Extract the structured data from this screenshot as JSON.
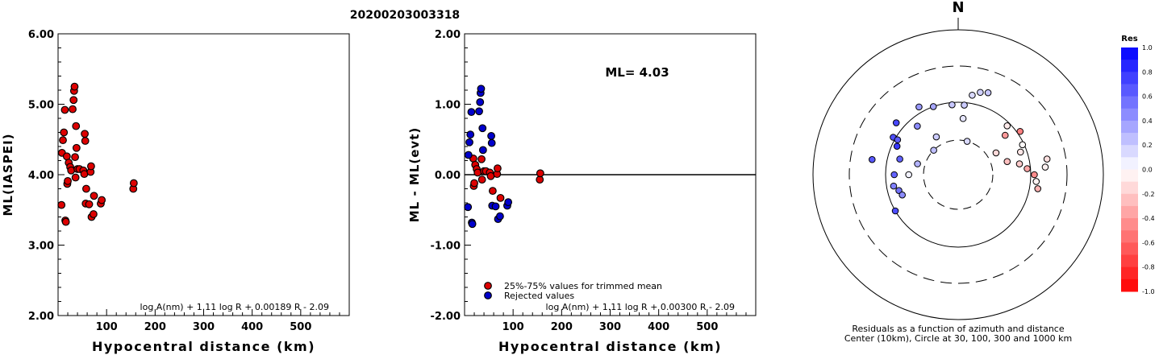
{
  "title": "20200203003318",
  "chart_data": [
    {
      "type": "scatter",
      "ylabel": "ML(IASPEI)",
      "xlabel": "Hypocentral distance (km)",
      "xlim": [
        0,
        600
      ],
      "ylim": [
        2.0,
        6.0
      ],
      "xticks": [
        "100",
        "200",
        "300",
        "400",
        "500"
      ],
      "yticks": [
        "2.00",
        "3.00",
        "4.00",
        "5.00",
        "6.00"
      ],
      "formula": "log A(nm) + 1.11 log R + 0.00189 R - 2.09",
      "series": [
        {
          "color": "#dd0000",
          "points": [
            [
              7,
              3.57
            ],
            [
              8,
              4.31
            ],
            [
              10,
              4.49
            ],
            [
              12,
              4.6
            ],
            [
              14,
              4.92
            ],
            [
              15,
              3.35
            ],
            [
              16,
              3.33
            ],
            [
              18,
              4.26
            ],
            [
              19,
              3.87
            ],
            [
              20,
              3.91
            ],
            [
              22,
              4.17
            ],
            [
              25,
              4.11
            ],
            [
              27,
              4.06
            ],
            [
              30,
              4.93
            ],
            [
              32,
              5.06
            ],
            [
              33,
              5.19
            ],
            [
              34,
              5.25
            ],
            [
              35,
              4.25
            ],
            [
              36,
              3.96
            ],
            [
              37,
              4.69
            ],
            [
              38,
              4.38
            ],
            [
              40,
              4.08
            ],
            [
              44,
              4.08
            ],
            [
              52,
              4.06
            ],
            [
              54,
              4.01
            ],
            [
              55,
              4.58
            ],
            [
              56,
              4.48
            ],
            [
              57,
              3.59
            ],
            [
              58,
              3.8
            ],
            [
              64,
              3.58
            ],
            [
              67,
              4.04
            ],
            [
              68,
              4.12
            ],
            [
              69,
              3.4
            ],
            [
              73,
              3.44
            ],
            [
              74,
              3.7
            ],
            [
              88,
              3.59
            ],
            [
              90,
              3.64
            ],
            [
              155,
              3.8
            ],
            [
              156,
              3.88
            ]
          ]
        }
      ]
    },
    {
      "type": "scatter",
      "ylabel": "ML - ML(evt)",
      "xlabel": "Hypocentral distance (km)",
      "xlim": [
        0,
        600
      ],
      "ylim": [
        -2.0,
        2.0
      ],
      "xticks": [
        "100",
        "200",
        "300",
        "400",
        "500"
      ],
      "yticks": [
        "-2.00",
        "-1.00",
        "0.00",
        "1.00",
        "2.00"
      ],
      "annotation": "ML= 4.03",
      "formula": "log A(nm) + 1.11 log R + 0.00300 R - 2.09",
      "legend": [
        "25%-75% values for trimmed mean",
        "Rejected values"
      ],
      "series": [
        {
          "name": "25%-75% values for trimmed mean",
          "color": "#dd0000",
          "points": [
            [
              18,
              0.23
            ],
            [
              19,
              -0.16
            ],
            [
              20,
              -0.12
            ],
            [
              22,
              0.14
            ],
            [
              25,
              0.08
            ],
            [
              27,
              0.03
            ],
            [
              35,
              0.22
            ],
            [
              36,
              -0.07
            ],
            [
              40,
              0.05
            ],
            [
              44,
              0.05
            ],
            [
              52,
              0.03
            ],
            [
              54,
              -0.02
            ],
            [
              58,
              -0.23
            ],
            [
              67,
              0.01
            ],
            [
              68,
              0.09
            ],
            [
              74,
              -0.33
            ],
            [
              155,
              -0.07
            ],
            [
              156,
              0.02
            ]
          ]
        },
        {
          "name": "Rejected values",
          "color": "#0000cc",
          "points": [
            [
              7,
              -0.46
            ],
            [
              8,
              0.28
            ],
            [
              10,
              0.46
            ],
            [
              12,
              0.57
            ],
            [
              14,
              0.89
            ],
            [
              15,
              -0.68
            ],
            [
              16,
              -0.7
            ],
            [
              30,
              0.9
            ],
            [
              32,
              1.03
            ],
            [
              33,
              1.16
            ],
            [
              34,
              1.22
            ],
            [
              37,
              0.66
            ],
            [
              38,
              0.35
            ],
            [
              55,
              0.55
            ],
            [
              56,
              0.45
            ],
            [
              57,
              -0.44
            ],
            [
              64,
              -0.45
            ],
            [
              69,
              -0.63
            ],
            [
              73,
              -0.59
            ],
            [
              88,
              -0.44
            ],
            [
              90,
              -0.39
            ]
          ]
        }
      ]
    },
    {
      "type": "scatter",
      "title": "N",
      "caption": "Residuals as a function of azimuth and distance",
      "caption2": "Center (10km), Circle at 30, 100, 300 and 1000 km",
      "colorbar_title": "Res",
      "colorbar_ticks": [
        "1.0",
        "0.8",
        "0.6",
        "0.4",
        "0.2",
        "0.0",
        "-0.2",
        "-0.4",
        "-0.6",
        "-0.8",
        "-1.0"
      ],
      "points_polar": [
        [
          20,
          160,
          0.22
        ],
        [
          15,
          150,
          0.18
        ],
        [
          5,
          92,
          0.2
        ],
        [
          355,
          93,
          0.22
        ],
        [
          300,
          108,
          0.69
        ],
        [
          300,
          92,
          0.64
        ],
        [
          320,
          75,
          0.45
        ],
        [
          295,
          85,
          0.78
        ],
        [
          285,
          68,
          0.62
        ],
        [
          270,
          76,
          0.61
        ],
        [
          255,
          70,
          0.55
        ],
        [
          250,
          66,
          0.45
        ],
        [
          260,
          80,
          0.5
        ],
        [
          240,
          100,
          0.7
        ],
        [
          330,
          40,
          0.2
        ],
        [
          315,
          30,
          0.25
        ],
        [
          285,
          38,
          0.3
        ],
        [
          270,
          48,
          0.05
        ],
        [
          5,
          60,
          0.1
        ],
        [
          15,
          30,
          0.15
        ],
        [
          60,
          40,
          -0.15
        ],
        [
          75,
          50,
          -0.25
        ],
        [
          80,
          72,
          -0.2
        ],
        [
          85,
          90,
          -0.35
        ],
        [
          90,
          112,
          -0.45
        ],
        [
          95,
          120,
          -0.05
        ],
        [
          100,
          130,
          -0.3
        ],
        [
          70,
          82,
          -0.1
        ],
        [
          65,
          95,
          -0.02
        ],
        [
          55,
          110,
          -0.5
        ],
        [
          50,
          70,
          -0.4
        ],
        [
          280,
          160,
          0.65
        ],
        [
          310,
          130,
          0.72
        ],
        [
          330,
          120,
          0.4
        ],
        [
          10,
          130,
          0.15
        ],
        [
          340,
          100,
          0.35
        ],
        [
          45,
          90,
          -0.08
        ],
        [
          85,
          160,
          -0.05
        ],
        [
          80,
          175,
          -0.12
        ]
      ]
    }
  ]
}
